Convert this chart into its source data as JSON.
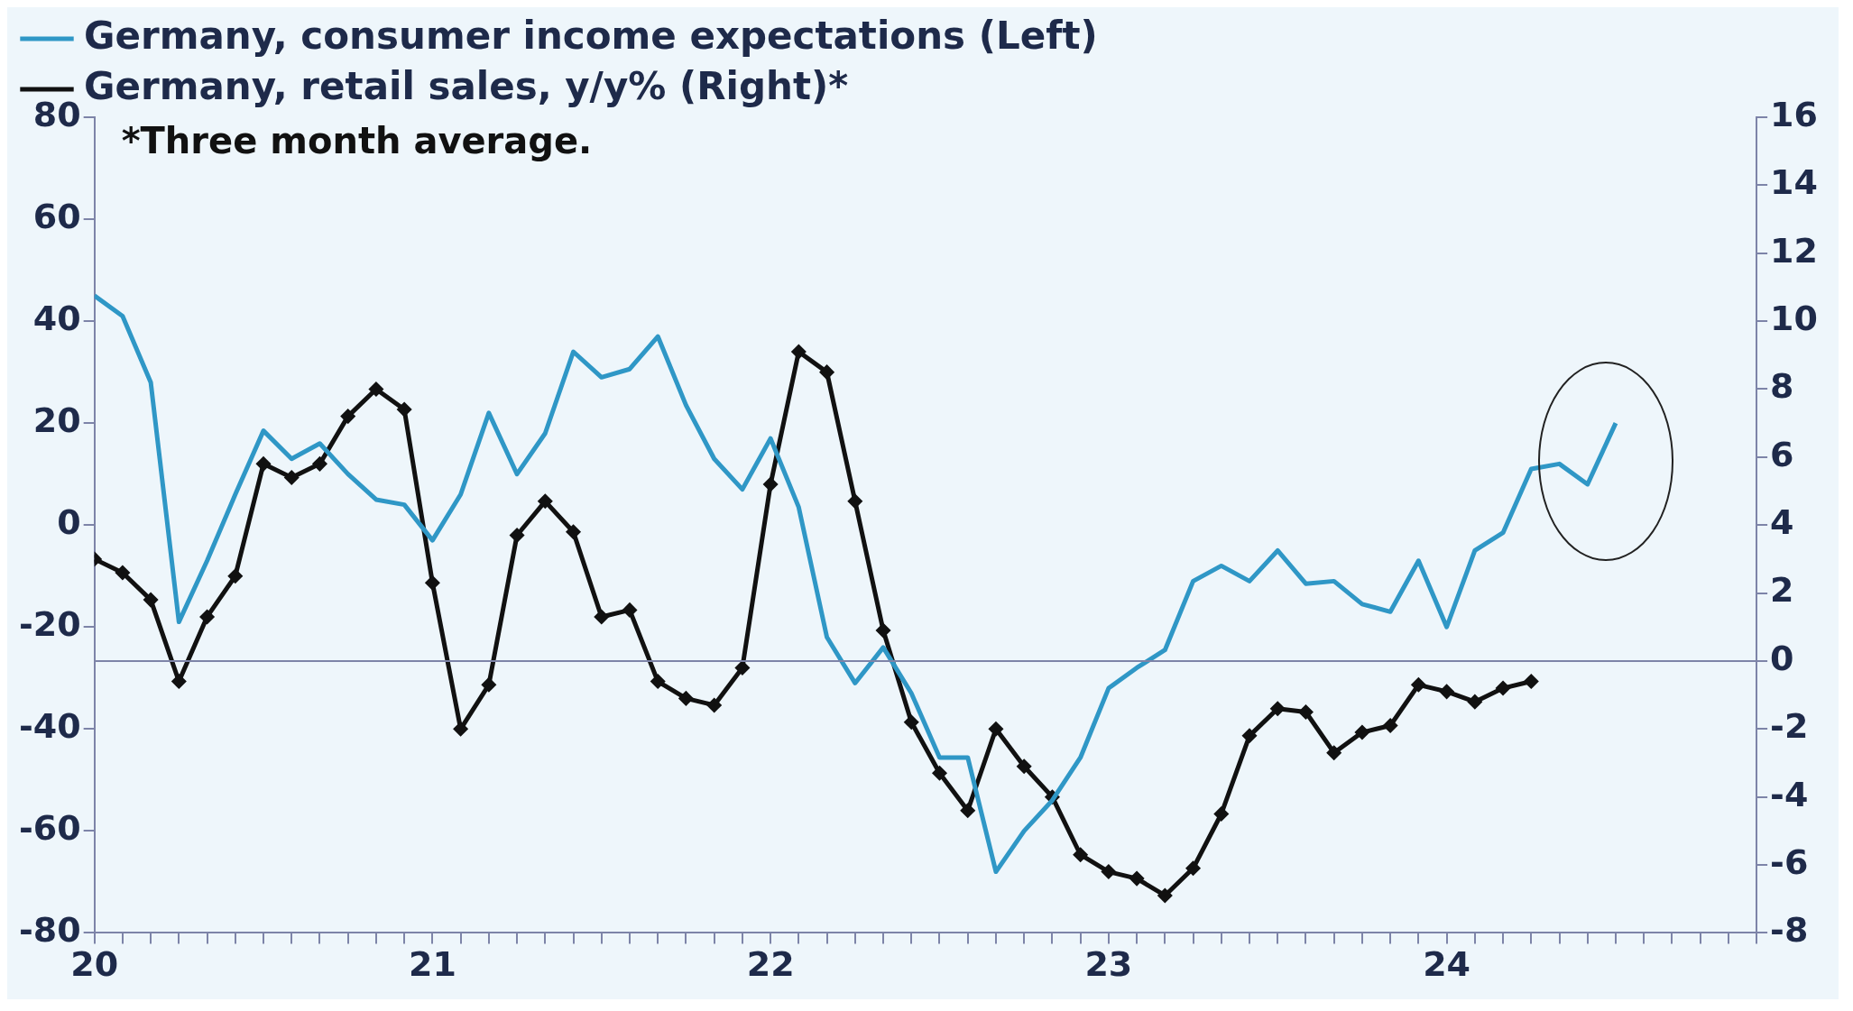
{
  "chart_data": {
    "type": "line",
    "annotations": [
      "*Three month average."
    ],
    "legend": "top left",
    "grid": false,
    "xlim": [
      "2020-01",
      "2024-12"
    ],
    "xticks": [
      {
        "value": "2020-01",
        "label": "20"
      },
      {
        "value": "2020-02",
        "label": null
      },
      {
        "value": "2020-03",
        "label": null
      },
      {
        "value": "2020-04",
        "label": null
      },
      {
        "value": "2020-05",
        "label": null
      },
      {
        "value": "2020-06",
        "label": null
      },
      {
        "value": "2020-07",
        "label": null
      },
      {
        "value": "2020-08",
        "label": null
      },
      {
        "value": "2020-09",
        "label": null
      },
      {
        "value": "2020-10",
        "label": null
      },
      {
        "value": "2020-11",
        "label": null
      },
      {
        "value": "2020-12",
        "label": null
      },
      {
        "value": "2021-01",
        "label": "21"
      },
      {
        "value": "2021-02",
        "label": null
      },
      {
        "value": "2021-03",
        "label": null
      },
      {
        "value": "2021-04",
        "label": null
      },
      {
        "value": "2021-05",
        "label": null
      },
      {
        "value": "2021-06",
        "label": null
      },
      {
        "value": "2021-07",
        "label": null
      },
      {
        "value": "2021-08",
        "label": null
      },
      {
        "value": "2021-09",
        "label": null
      },
      {
        "value": "2021-10",
        "label": null
      },
      {
        "value": "2021-11",
        "label": null
      },
      {
        "value": "2021-12",
        "label": null
      },
      {
        "value": "2022-01",
        "label": "22"
      },
      {
        "value": "2022-02",
        "label": null
      },
      {
        "value": "2022-03",
        "label": null
      },
      {
        "value": "2022-04",
        "label": null
      },
      {
        "value": "2022-05",
        "label": null
      },
      {
        "value": "2022-06",
        "label": null
      },
      {
        "value": "2022-07",
        "label": null
      },
      {
        "value": "2022-08",
        "label": null
      },
      {
        "value": "2022-09",
        "label": null
      },
      {
        "value": "2022-10",
        "label": null
      },
      {
        "value": "2022-11",
        "label": null
      },
      {
        "value": "2022-12",
        "label": null
      },
      {
        "value": "2023-01",
        "label": "23"
      },
      {
        "value": "2023-02",
        "label": null
      },
      {
        "value": "2023-03",
        "label": null
      },
      {
        "value": "2023-04",
        "label": null
      },
      {
        "value": "2023-05",
        "label": null
      },
      {
        "value": "2023-06",
        "label": null
      },
      {
        "value": "2023-07",
        "label": null
      },
      {
        "value": "2023-08",
        "label": null
      },
      {
        "value": "2023-09",
        "label": null
      },
      {
        "value": "2023-10",
        "label": null
      },
      {
        "value": "2023-11",
        "label": null
      },
      {
        "value": "2023-12",
        "label": null
      },
      {
        "value": "2024-01",
        "label": "24"
      },
      {
        "value": "2024-02",
        "label": null
      },
      {
        "value": "2024-03",
        "label": null
      },
      {
        "value": "2024-04",
        "label": null
      },
      {
        "value": "2024-05",
        "label": null
      },
      {
        "value": "2024-06",
        "label": null
      },
      {
        "value": "2024-07",
        "label": null
      },
      {
        "value": "2024-08",
        "label": null
      },
      {
        "value": "2024-09",
        "label": null
      },
      {
        "value": "2024-10",
        "label": null
      },
      {
        "value": "2024-11",
        "label": null
      },
      {
        "value": "2024-12",
        "label": null
      }
    ],
    "ylim": [
      -80,
      80
    ],
    "yticks": [
      -80,
      -60,
      -40,
      -20,
      0,
      20,
      40,
      60,
      80
    ],
    "y2lim": [
      -8,
      16
    ],
    "y2ticks": [
      -8,
      -6,
      -4,
      -2,
      0,
      2,
      4,
      6,
      8,
      10,
      12,
      14,
      16
    ],
    "ref_lines": [
      {
        "axis": "y2",
        "value": 0,
        "color": "#7d84a8"
      }
    ],
    "series": [
      {
        "name": "Germany, consumer income expectations (Left)",
        "color": "#2f97c6",
        "marker": "none",
        "x": [
          "2020-01",
          "2020-02",
          "2020-03",
          "2020-04",
          "2020-05",
          "2020-06",
          "2020-07",
          "2020-08",
          "2020-09",
          "2020-10",
          "2020-11",
          "2020-12",
          "2021-01",
          "2021-02",
          "2021-03",
          "2021-04",
          "2021-05",
          "2021-06",
          "2021-07",
          "2021-08",
          "2021-09",
          "2021-10",
          "2021-11",
          "2021-12",
          "2022-01",
          "2022-02",
          "2022-03",
          "2022-04",
          "2022-05",
          "2022-06",
          "2022-07",
          "2022-08",
          "2022-09",
          "2022-10",
          "2022-11",
          "2022-12",
          "2023-01",
          "2023-02",
          "2023-03",
          "2023-04",
          "2023-05",
          "2023-06",
          "2023-07",
          "2023-08",
          "2023-09",
          "2023-10",
          "2023-11",
          "2023-12",
          "2024-01",
          "2024-02",
          "2024-03",
          "2024-04",
          "2024-05",
          "2024-06",
          "2024-07"
        ],
        "values": [
          45,
          41,
          28,
          -19,
          -7,
          6,
          18.5,
          13,
          16,
          10,
          5,
          4,
          -3,
          6,
          22,
          10,
          18,
          34,
          29,
          30.6,
          37,
          23.5,
          13,
          7,
          17,
          3.5,
          -22,
          -31,
          -24,
          -33,
          -45.6,
          -45.6,
          -68,
          -60,
          -54,
          -45.6,
          -32,
          -28,
          -24.5,
          -11,
          -8,
          -11,
          -5,
          -11.5,
          -11,
          -15.5,
          -17,
          -7,
          -20,
          -5,
          -1.5,
          11,
          12,
          8,
          20
        ]
      },
      {
        "name": "Germany, retail sales, y/y% (Right)*",
        "color": "#111111",
        "marker": "diamond",
        "axis": "y2",
        "x": [
          "2020-01",
          "2020-02",
          "2020-03",
          "2020-04",
          "2020-05",
          "2020-06",
          "2020-07",
          "2020-08",
          "2020-09",
          "2020-10",
          "2020-11",
          "2020-12",
          "2021-01",
          "2021-02",
          "2021-03",
          "2021-04",
          "2021-05",
          "2021-06",
          "2021-07",
          "2021-08",
          "2021-09",
          "2021-10",
          "2021-11",
          "2021-12",
          "2022-01",
          "2022-02",
          "2022-03",
          "2022-04",
          "2022-05",
          "2022-06",
          "2022-07",
          "2022-08",
          "2022-09",
          "2022-10",
          "2022-11",
          "2022-12",
          "2023-01",
          "2023-02",
          "2023-03",
          "2023-04",
          "2023-05",
          "2023-06",
          "2023-07",
          "2023-08",
          "2023-09",
          "2023-10",
          "2023-11",
          "2023-12",
          "2024-01",
          "2024-02",
          "2024-03",
          "2024-04"
        ],
        "values": [
          3.0,
          2.6,
          1.8,
          -0.6,
          1.3,
          2.5,
          5.8,
          5.4,
          5.8,
          7.2,
          8.0,
          7.4,
          2.3,
          -2.0,
          -0.7,
          3.7,
          4.7,
          3.8,
          1.3,
          1.5,
          -0.6,
          -1.1,
          -1.3,
          -0.2,
          5.2,
          9.1,
          8.5,
          4.7,
          0.9,
          -1.8,
          -3.3,
          -4.4,
          -2.0,
          -3.1,
          -4.0,
          -5.7,
          -6.2,
          -6.4,
          -6.9,
          -6.1,
          -4.5,
          -2.2,
          -1.4,
          -1.5,
          -2.7,
          -2.1,
          -1.9,
          -0.7,
          -0.9,
          -1.2,
          -0.8,
          -0.6
        ]
      }
    ]
  }
}
